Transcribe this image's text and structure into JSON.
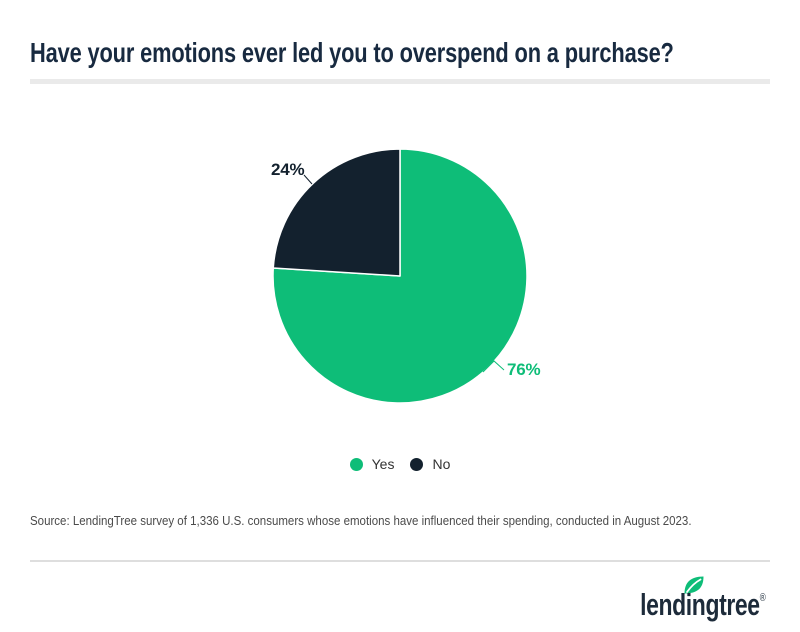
{
  "title": "Have your emotions ever led you to overspend on a purchase?",
  "chart_data": {
    "type": "pie",
    "title": "Have your emotions ever led you to overspend on a purchase?",
    "start_angle_deg": 0,
    "direction": "clockwise",
    "slices": [
      {
        "label": "Yes",
        "value": 76,
        "percent_label": "76%",
        "color": "#0EBD78"
      },
      {
        "label": "No",
        "value": 24,
        "percent_label": "24%",
        "color": "#13212E"
      }
    ],
    "slice_border_color": "#FFFFFF",
    "legend_position": "bottom",
    "legend_labels": [
      "Yes",
      "No"
    ]
  },
  "source": {
    "text": "Source: LendingTree survey of 1,336 U.S. consumers whose emotions have influenced their spending, conducted in August 2023."
  },
  "footer": {
    "logo_text": "lendingtree",
    "registered_mark": "®",
    "leaf_color": "#0EBD78"
  },
  "colors": {
    "accent_green": "#0EBD78",
    "dark_navy": "#13212E",
    "title_navy": "#182A40",
    "divider_gray": "#EAEAEA",
    "footer_divider_gray": "#DEDEDE",
    "source_gray": "#4B4B4B",
    "legend_text": "#333333"
  }
}
